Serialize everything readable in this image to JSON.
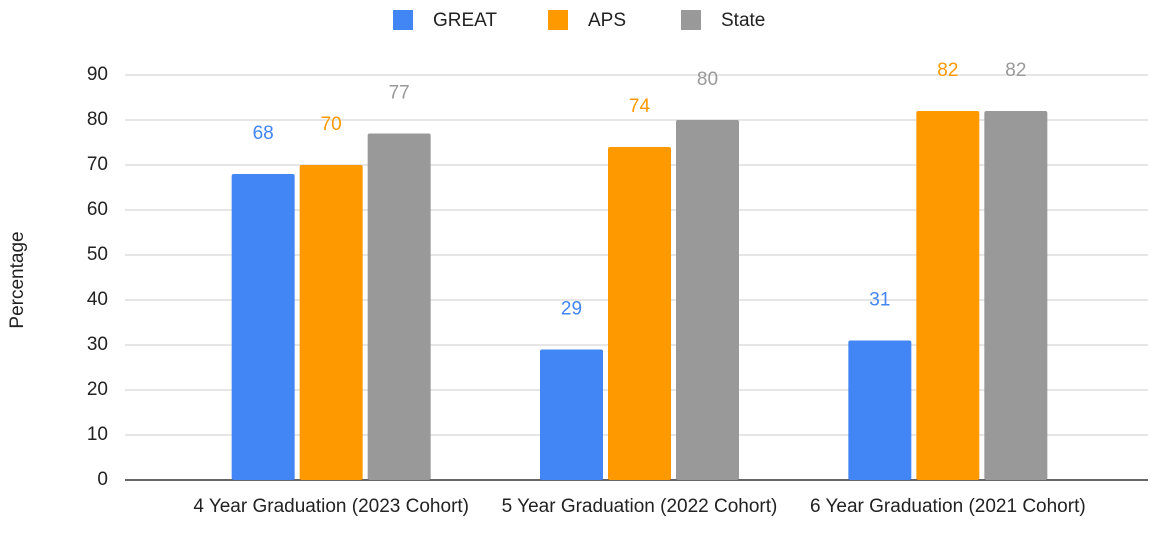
{
  "chart_data": {
    "type": "bar",
    "categories": [
      "4 Year Graduation (2023 Cohort)",
      "5 Year Graduation (2022 Cohort)",
      "6 Year Graduation (2021 Cohort)"
    ],
    "series": [
      {
        "name": "GREAT",
        "color": "#4285f4",
        "values": [
          68,
          29,
          31
        ]
      },
      {
        "name": "APS",
        "color": "#ff9900",
        "values": [
          70,
          74,
          82
        ]
      },
      {
        "name": "State",
        "color": "#999999",
        "values": [
          77,
          80,
          82
        ]
      }
    ],
    "y_label": "Percentage",
    "ylim": [
      0,
      90
    ],
    "yticks": [
      0,
      10,
      20,
      30,
      40,
      50,
      60,
      70,
      80,
      90
    ],
    "grid": true,
    "legend": "top"
  }
}
